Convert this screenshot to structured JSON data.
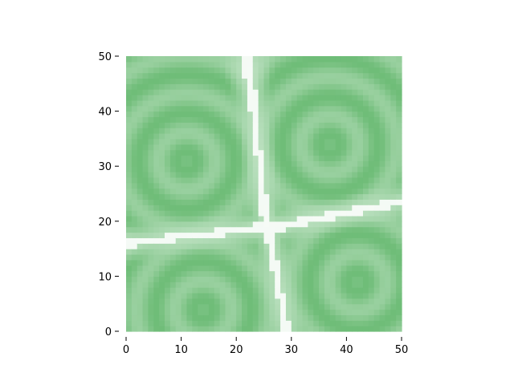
{
  "chart_data": {
    "type": "heatmap",
    "title": "",
    "xlabel": "",
    "ylabel": "",
    "xlim": [
      0,
      50
    ],
    "ylim": [
      0,
      50
    ],
    "x_ticks": [
      "0",
      "10",
      "20",
      "30",
      "40",
      "50"
    ],
    "y_ticks": [
      "0",
      "10",
      "20",
      "30",
      "40",
      "50"
    ],
    "grid": false,
    "colormap": "Greens (white = low, green = high)",
    "colors": {
      "high": "#4fae5a",
      "low": "#ffffff"
    },
    "description_of_field": "cellular pattern: four green cells separated by white boundaries meeting at a junction near (27, 13)",
    "cells": [
      {
        "name": "upper-left",
        "center": [
          11,
          31
        ]
      },
      {
        "name": "upper-right",
        "center": [
          37,
          34
        ]
      },
      {
        "name": "lower-left",
        "center": [
          14,
          4
        ]
      },
      {
        "name": "lower-right",
        "center": [
          42,
          9
        ]
      }
    ]
  }
}
